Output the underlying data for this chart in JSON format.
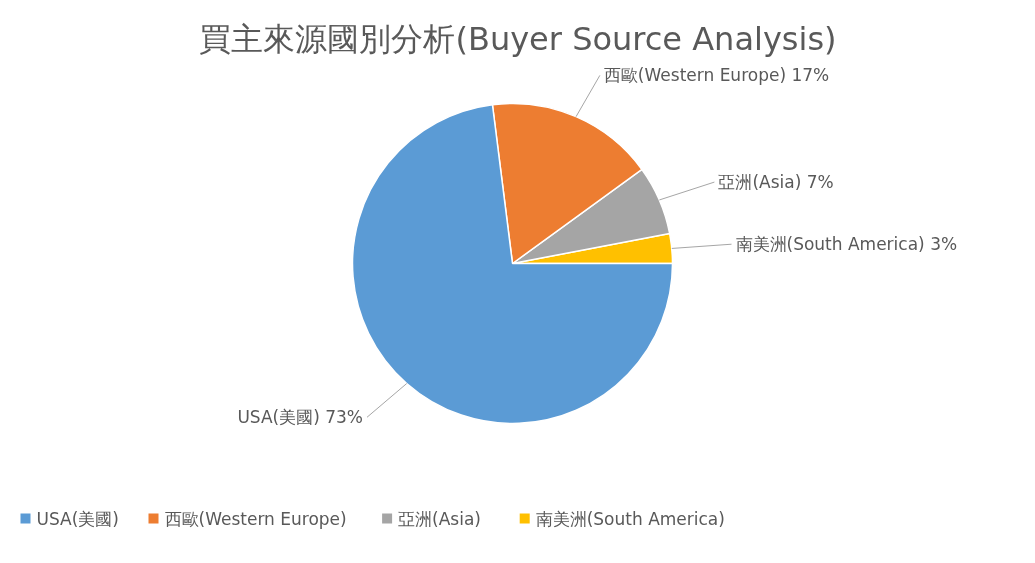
{
  "chart_data": {
    "type": "pie",
    "title": "買主來源國別分析(Buyer Source Analysis)",
    "categories": [
      "USA(美國)",
      "西歐(Western Europe)",
      "亞洲(Asia)",
      "南美洲(South America)"
    ],
    "values": [
      73,
      17,
      7,
      3
    ],
    "value_labels": [
      "73%",
      "17%",
      "7%",
      "3%"
    ],
    "colors": [
      "#5b9bd5",
      "#ed7d31",
      "#a5a5a5",
      "#ffc000"
    ],
    "legend": "bottom"
  }
}
